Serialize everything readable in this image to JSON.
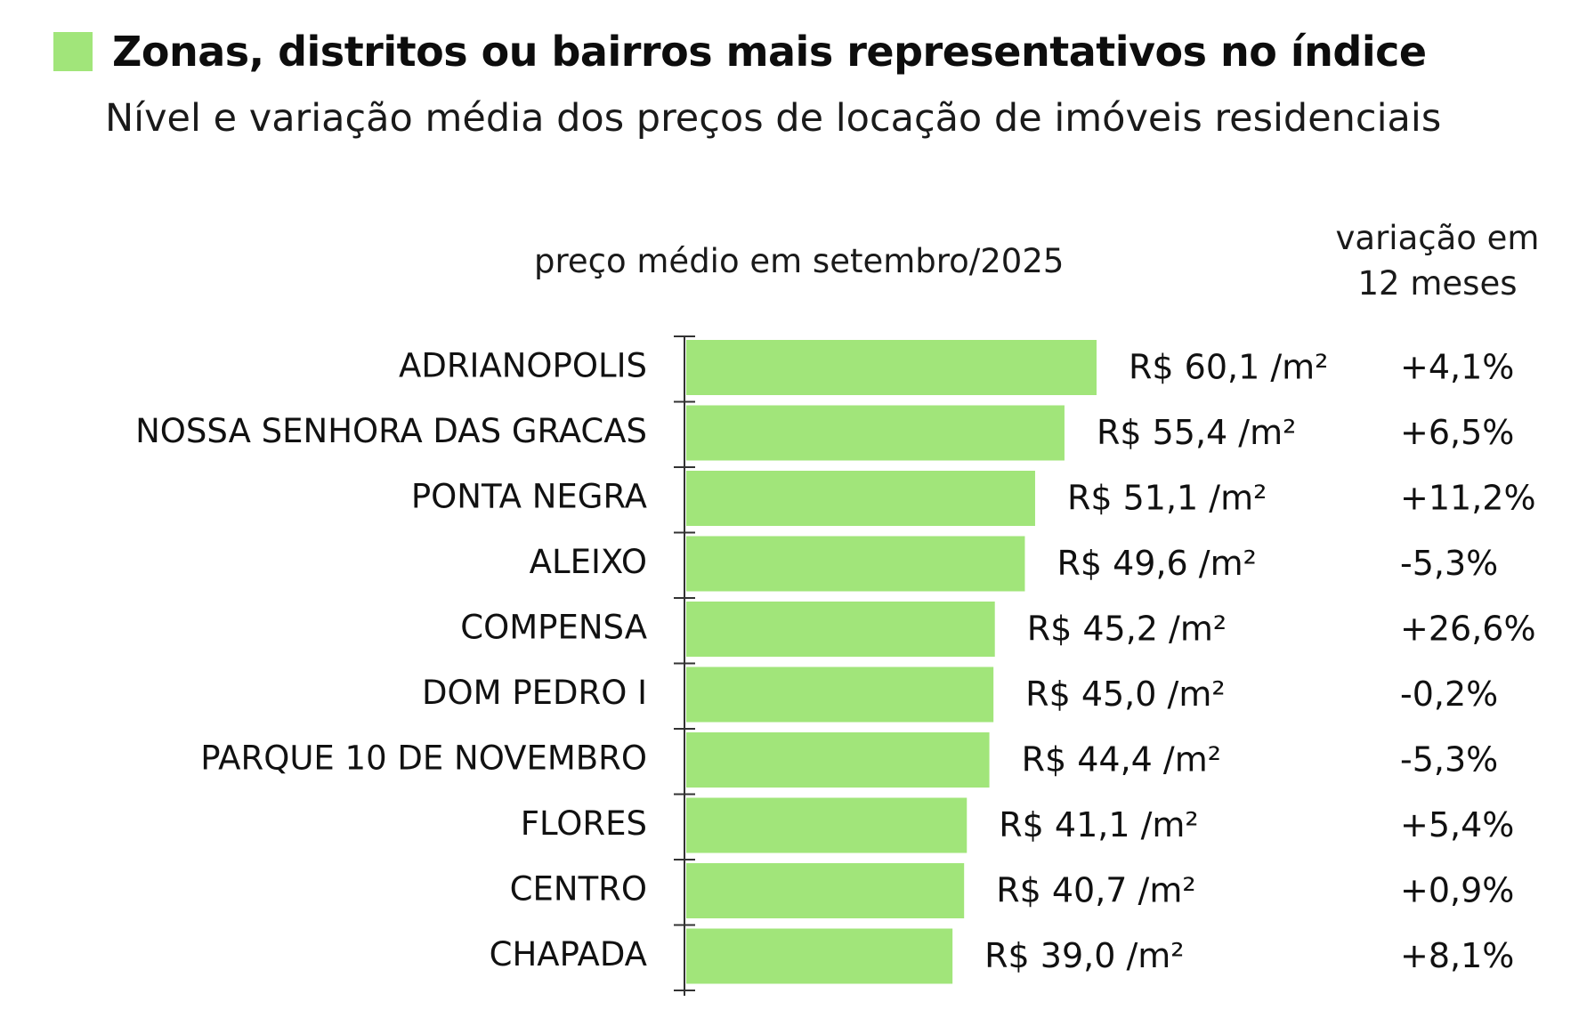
{
  "header": {
    "title": "Zonas, distritos ou bairros mais representativos no índice",
    "subtitle": "Nível e variação média dos preços de locação de imóveis residenciais",
    "price_column_label": "preço médio em setembro/2025",
    "variation_column_label_line1": "variação em",
    "variation_column_label_line2": "12 meses"
  },
  "colors": {
    "bar": "#a1e57a",
    "axis": "#333333",
    "text": "#111111"
  },
  "chart_data": {
    "type": "bar",
    "orientation": "horizontal",
    "categories": [
      "ADRIANOPOLIS",
      "NOSSA SENHORA DAS GRACAS",
      "PONTA NEGRA",
      "ALEIXO",
      "COMPENSA",
      "DOM PEDRO I",
      "PARQUE 10 DE NOVEMBRO",
      "FLORES",
      "CENTRO",
      "CHAPADA"
    ],
    "values": [
      60.1,
      55.4,
      51.1,
      49.6,
      45.2,
      45.0,
      44.4,
      41.1,
      40.7,
      39.0
    ],
    "value_labels": [
      "R$ 60,1 /m²",
      "R$ 55,4 /m²",
      "R$ 51,1 /m²",
      "R$ 49,6 /m²",
      "R$ 45,2 /m²",
      "R$ 45,0 /m²",
      "R$ 44,4 /m²",
      "R$ 41,1 /m²",
      "R$ 40,7 /m²",
      "R$ 39,0 /m²"
    ],
    "variation_12m": [
      4.1,
      6.5,
      11.2,
      -5.3,
      26.6,
      -0.2,
      -5.3,
      5.4,
      0.9,
      8.1
    ],
    "variation_labels": [
      "+4,1%",
      "+6,5%",
      "+11,2%",
      "-5,3%",
      "+26,6%",
      "-0,2%",
      "-5,3%",
      "+5,4%",
      "+0,9%",
      "+8,1%"
    ],
    "xlim": [
      0,
      60.1
    ],
    "grid": false,
    "legend": "none"
  }
}
